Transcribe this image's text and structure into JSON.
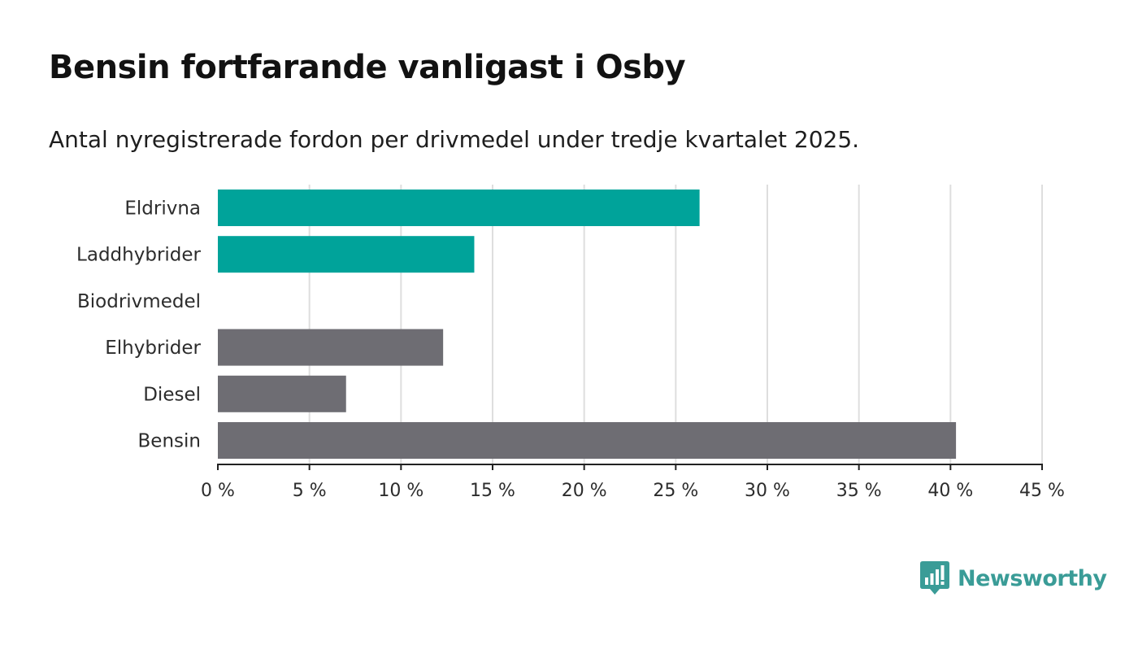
{
  "header": {
    "title": "Bensin fortfarande vanligast i Osby",
    "subtitle": "Antal nyregistrerade fordon per drivmedel under tredje kvartalet 2025."
  },
  "chart_data": {
    "type": "bar",
    "orientation": "horizontal",
    "categories": [
      "Eldrivna",
      "Laddhybrider",
      "Biodrivmedel",
      "Elhybrider",
      "Diesel",
      "Bensin"
    ],
    "values": [
      26.3,
      14.0,
      0,
      12.3,
      7.0,
      40.3
    ],
    "colors": [
      "#00a39a",
      "#00a39a",
      "#00a39a",
      "#6e6d73",
      "#6e6d73",
      "#6e6d73"
    ],
    "x_ticks": [
      "0 %",
      "5 %",
      "10 %",
      "15 %",
      "20 %",
      "25 %",
      "30 %",
      "35 %",
      "40 %",
      "45 %"
    ],
    "xlim": [
      0,
      45
    ],
    "grid": true
  },
  "logo": {
    "text": "Newsworthy",
    "color": "#3a9c97"
  }
}
